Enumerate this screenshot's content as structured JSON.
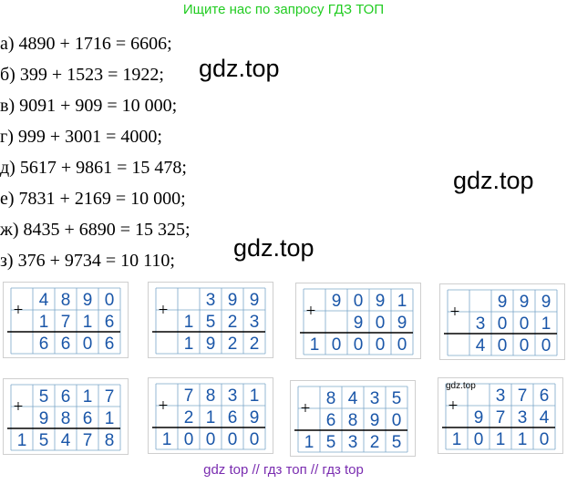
{
  "banner": "Ищите нас по запросу ГДЗ ТОП",
  "equations": [
    {
      "label": "а)",
      "expr": "4890 + 1716 = 6606;"
    },
    {
      "label": "б)",
      "expr": "399 + 1523 = 1922;"
    },
    {
      "label": "в)",
      "expr": "9091 + 909 = 10 000;"
    },
    {
      "label": "г)",
      "expr": "999 + 3001 = 4000;"
    },
    {
      "label": "д)",
      "expr": "5617 + 9861 = 15 478;"
    },
    {
      "label": "е)",
      "expr": "7831 + 2169 = 10 000;"
    },
    {
      "label": "ж)",
      "expr": "8435 + 6890 = 15 325;"
    },
    {
      "label": "з)",
      "expr": "376 + 9734 = 10 110;"
    }
  ],
  "watermarks": [
    "gdz.top",
    "gdz.top",
    "gdz.top"
  ],
  "small_watermark": "gdz.top",
  "column_additions": [
    {
      "a": "4890",
      "b": "1716",
      "sum": "6606"
    },
    {
      "a": "399",
      "b": "1523",
      "sum": "1922"
    },
    {
      "a": "9091",
      "b": "909",
      "sum": "10000"
    },
    {
      "a": "999",
      "b": "3001",
      "sum": "4000"
    },
    {
      "a": "5617",
      "b": "9861",
      "sum": "15478"
    },
    {
      "a": "7831",
      "b": "2169",
      "sum": "10000"
    },
    {
      "a": "8435",
      "b": "6890",
      "sum": "15325"
    },
    {
      "a": "376",
      "b": "9734",
      "sum": "10110"
    }
  ],
  "plus_sign": "+",
  "footer": "gdz top  //  гдз топ  //  гдз top",
  "colors": {
    "banner": "#22cc22",
    "digits": "#1a56a8",
    "footer": "#7a2db0",
    "grid": "#7aa6c9"
  }
}
